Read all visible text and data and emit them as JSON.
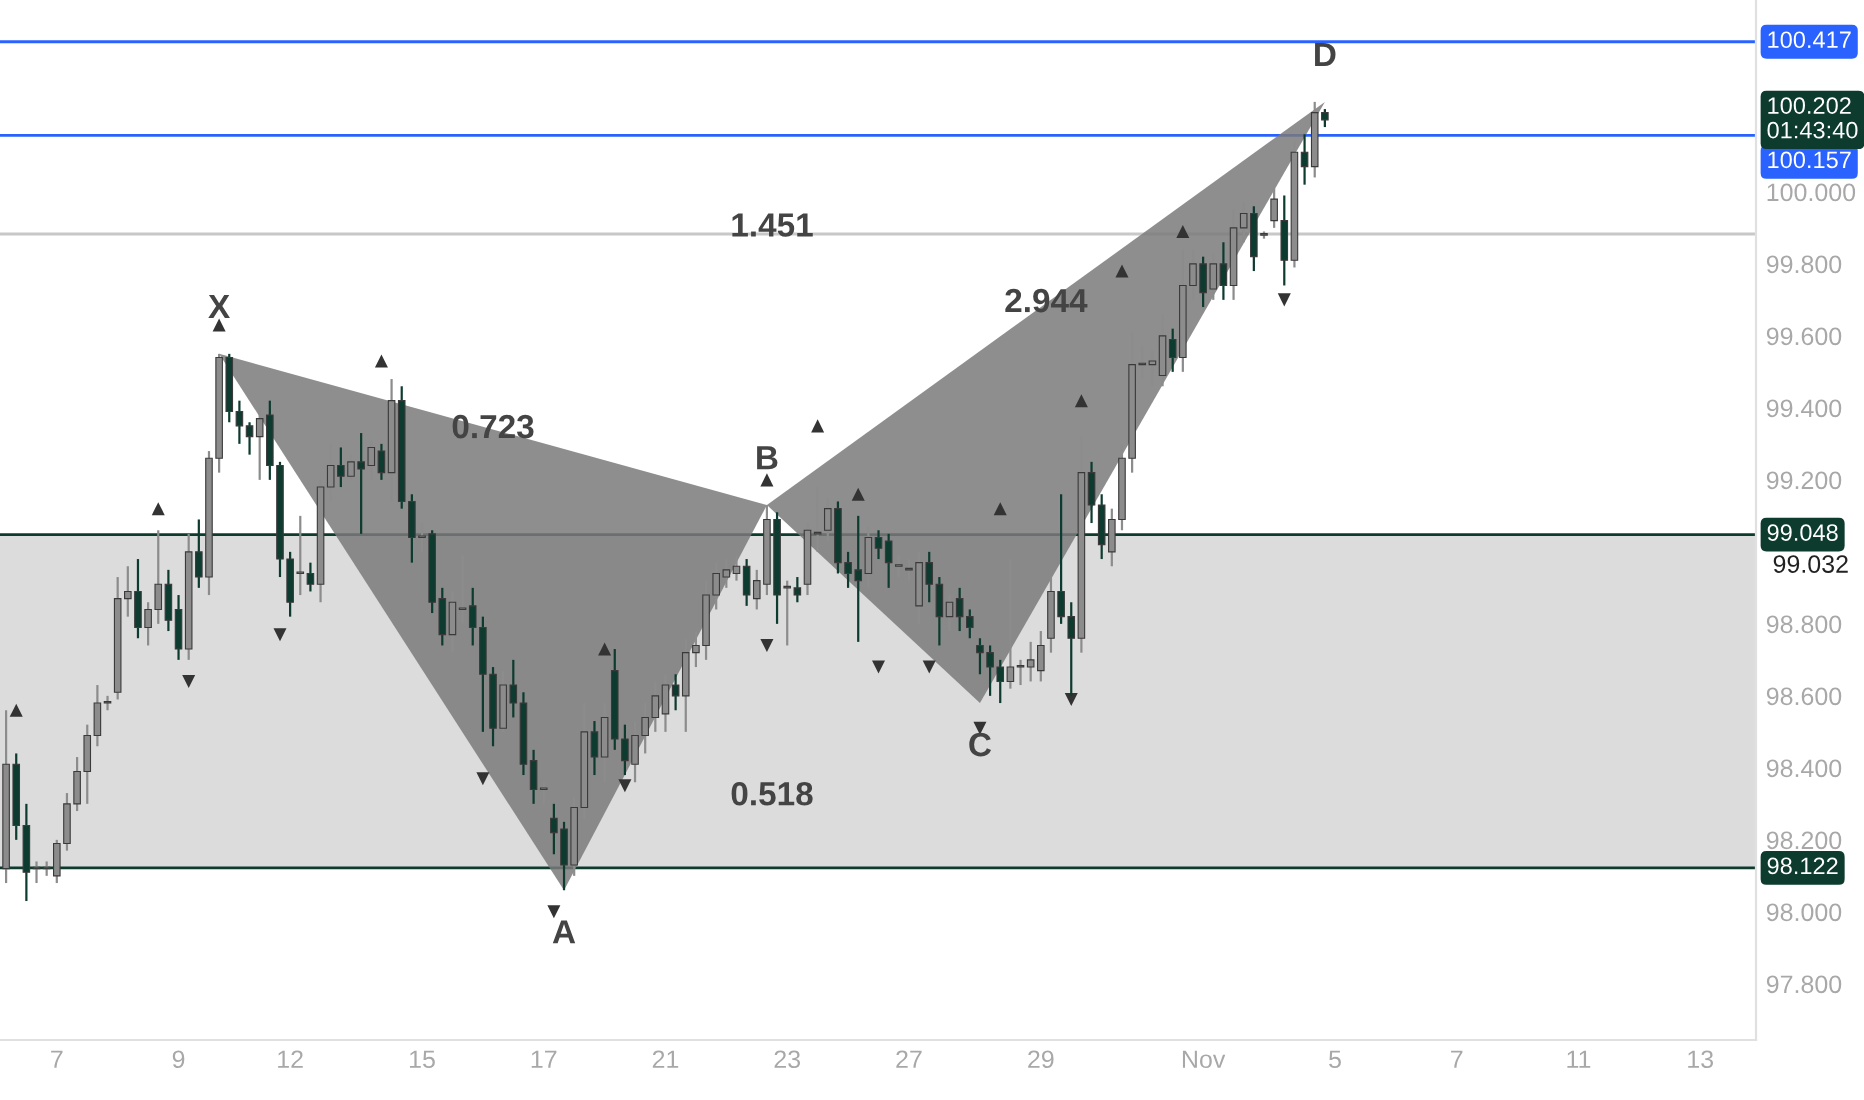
{
  "chart_data": {
    "type": "candlestick",
    "categories": [
      null,
      null,
      null,
      null,
      null,
      "7",
      null,
      null,
      null,
      null,
      null,
      null,
      null,
      null,
      null,
      null,
      null,
      "9",
      null,
      null,
      null,
      null,
      null,
      null,
      null,
      null,
      null,
      null,
      "12",
      null,
      null,
      null,
      null,
      null,
      null,
      null,
      null,
      null,
      null,
      null,
      null,
      "15",
      null,
      null,
      null,
      null,
      null,
      null,
      null,
      null,
      null,
      null,
      null,
      "17",
      null,
      null,
      null,
      null,
      null,
      null,
      null,
      null,
      null,
      null,
      null,
      "21",
      null,
      null,
      null,
      null,
      null,
      null,
      null,
      null,
      null,
      null,
      null,
      "23",
      null,
      null,
      null,
      null,
      null,
      null,
      null,
      null,
      null,
      null,
      null,
      "27",
      null,
      null,
      null,
      null,
      null,
      null,
      null,
      null,
      null,
      null,
      null,
      null,
      "29",
      null,
      null,
      null,
      null,
      null,
      null,
      null,
      null,
      null,
      null,
      null,
      null,
      null,
      null,
      null,
      "Nov",
      null,
      null,
      null,
      null,
      null,
      null,
      null,
      null,
      null,
      null,
      null,
      null,
      "5",
      null,
      null,
      null,
      null,
      null,
      null,
      null,
      null,
      null,
      null,
      null,
      "7",
      null,
      null,
      null,
      null,
      null,
      null,
      null,
      null,
      null,
      null,
      null,
      "11",
      null,
      null,
      null,
      null,
      null,
      null,
      null,
      null,
      null,
      null,
      null,
      "13",
      null,
      null,
      null,
      null,
      null
    ],
    "ohlc": [
      [
        98.12,
        98.56,
        98.08,
        98.41
      ],
      [
        98.41,
        98.44,
        98.2,
        98.24
      ],
      [
        98.24,
        98.3,
        98.03,
        98.11
      ],
      [
        98.12,
        98.14,
        98.08,
        98.12
      ],
      [
        98.12,
        98.14,
        98.1,
        98.12
      ],
      [
        98.1,
        98.2,
        98.08,
        98.19
      ],
      [
        98.19,
        98.33,
        98.17,
        98.3
      ],
      [
        98.3,
        98.43,
        98.28,
        98.39
      ],
      [
        98.39,
        98.52,
        98.3,
        98.49
      ],
      [
        98.49,
        98.63,
        98.46,
        98.58
      ],
      [
        98.58,
        98.6,
        98.56,
        98.58
      ],
      [
        98.61,
        98.93,
        98.59,
        98.87
      ],
      [
        98.87,
        98.96,
        98.82,
        98.89
      ],
      [
        98.89,
        98.98,
        98.76,
        98.79
      ],
      [
        98.79,
        98.86,
        98.74,
        98.84
      ],
      [
        98.84,
        99.06,
        98.8,
        98.91
      ],
      [
        98.91,
        98.95,
        98.78,
        98.81
      ],
      [
        98.84,
        98.88,
        98.7,
        98.73
      ],
      [
        98.73,
        99.05,
        98.7,
        99.0
      ],
      [
        99.0,
        99.09,
        98.9,
        98.93
      ],
      [
        98.93,
        99.28,
        98.88,
        99.26
      ],
      [
        99.26,
        99.55,
        99.22,
        99.54
      ],
      [
        99.54,
        99.55,
        99.36,
        99.39
      ],
      [
        99.39,
        99.42,
        99.3,
        99.35
      ],
      [
        99.35,
        99.36,
        99.27,
        99.32
      ],
      [
        99.32,
        99.4,
        99.2,
        99.37
      ],
      [
        99.38,
        99.42,
        99.2,
        99.24
      ],
      [
        99.24,
        99.25,
        98.93,
        98.98
      ],
      [
        98.98,
        99.0,
        98.82,
        98.86
      ],
      [
        98.94,
        99.1,
        98.88,
        98.94
      ],
      [
        98.94,
        98.97,
        98.89,
        98.91
      ],
      [
        98.91,
        99.2,
        98.86,
        99.18
      ],
      [
        99.18,
        99.3,
        99.14,
        99.24
      ],
      [
        99.24,
        99.29,
        99.18,
        99.21
      ],
      [
        99.21,
        99.27,
        99.2,
        99.25
      ],
      [
        99.25,
        99.33,
        99.05,
        99.23
      ],
      [
        99.24,
        99.31,
        99.2,
        99.29
      ],
      [
        99.28,
        99.3,
        99.2,
        99.22
      ],
      [
        99.22,
        99.48,
        99.14,
        99.42
      ],
      [
        99.42,
        99.46,
        99.12,
        99.14
      ],
      [
        99.14,
        99.16,
        98.97,
        99.04
      ],
      [
        99.04,
        99.08,
        99.0,
        99.04
      ],
      [
        99.05,
        99.06,
        98.83,
        98.86
      ],
      [
        98.87,
        98.9,
        98.74,
        98.77
      ],
      [
        98.77,
        98.89,
        98.72,
        98.86
      ],
      [
        98.84,
        98.99,
        98.8,
        98.84
      ],
      [
        98.85,
        98.9,
        98.74,
        98.79
      ],
      [
        98.79,
        98.82,
        98.5,
        98.66
      ],
      [
        98.66,
        98.68,
        98.46,
        98.51
      ],
      [
        98.51,
        98.67,
        98.5,
        98.63
      ],
      [
        98.63,
        98.7,
        98.54,
        98.58
      ],
      [
        98.58,
        98.61,
        98.38,
        98.41
      ],
      [
        98.42,
        98.45,
        98.3,
        98.34
      ],
      [
        98.34,
        98.36,
        98.3,
        98.34
      ],
      [
        98.26,
        98.3,
        98.16,
        98.22
      ],
      [
        98.23,
        98.25,
        98.06,
        98.13
      ],
      [
        98.13,
        98.32,
        98.1,
        98.29
      ],
      [
        98.29,
        98.58,
        98.26,
        98.5
      ],
      [
        98.5,
        98.53,
        98.38,
        98.43
      ],
      [
        98.43,
        98.58,
        98.36,
        98.54
      ],
      [
        98.67,
        98.73,
        98.45,
        98.48
      ],
      [
        98.48,
        98.52,
        98.38,
        98.42
      ],
      [
        98.41,
        98.53,
        98.36,
        98.49
      ],
      [
        98.49,
        98.58,
        98.44,
        98.54
      ],
      [
        98.54,
        98.64,
        98.5,
        98.6
      ],
      [
        98.55,
        98.66,
        98.5,
        98.63
      ],
      [
        98.63,
        98.66,
        98.56,
        98.6
      ],
      [
        98.6,
        98.76,
        98.5,
        98.72
      ],
      [
        98.72,
        98.78,
        98.68,
        98.74
      ],
      [
        98.74,
        98.92,
        98.7,
        98.88
      ],
      [
        98.88,
        98.97,
        98.84,
        98.94
      ],
      [
        98.93,
        98.98,
        98.9,
        98.95
      ],
      [
        98.94,
        98.99,
        98.92,
        98.96
      ],
      [
        98.96,
        98.98,
        98.85,
        98.88
      ],
      [
        98.87,
        98.95,
        98.84,
        98.92
      ],
      [
        98.91,
        99.13,
        98.88,
        99.09
      ],
      [
        99.09,
        99.11,
        98.8,
        98.88
      ],
      [
        98.9,
        98.92,
        98.74,
        98.9
      ],
      [
        98.9,
        98.93,
        98.86,
        98.88
      ],
      [
        98.91,
        99.08,
        98.88,
        99.06
      ],
      [
        99.05,
        99.18,
        99.0,
        99.05
      ],
      [
        99.06,
        99.15,
        99.03,
        99.12
      ],
      [
        99.12,
        99.14,
        98.94,
        98.97
      ],
      [
        98.97,
        99.0,
        98.9,
        98.94
      ],
      [
        98.95,
        99.1,
        98.75,
        98.92
      ],
      [
        98.94,
        99.07,
        98.9,
        99.04
      ],
      [
        99.04,
        99.06,
        98.98,
        99.01
      ],
      [
        99.03,
        99.05,
        98.9,
        98.97
      ],
      [
        98.96,
        98.99,
        98.93,
        98.96
      ],
      [
        98.95,
        98.98,
        98.92,
        98.95
      ],
      [
        98.85,
        99.0,
        98.8,
        98.97
      ],
      [
        98.97,
        99.0,
        98.86,
        98.91
      ],
      [
        98.91,
        98.93,
        98.74,
        98.82
      ],
      [
        98.82,
        98.88,
        98.78,
        98.86
      ],
      [
        98.87,
        98.9,
        98.78,
        98.82
      ],
      [
        98.82,
        98.84,
        98.76,
        98.79
      ],
      [
        98.74,
        98.76,
        98.66,
        98.72
      ],
      [
        98.72,
        98.74,
        98.6,
        98.68
      ],
      [
        98.68,
        98.7,
        98.58,
        98.64
      ],
      [
        98.64,
        98.98,
        98.62,
        98.68
      ],
      [
        98.68,
        98.7,
        98.63,
        98.68
      ],
      [
        98.68,
        98.75,
        98.64,
        98.7
      ],
      [
        98.67,
        98.78,
        98.64,
        98.74
      ],
      [
        98.76,
        98.93,
        98.72,
        98.89
      ],
      [
        98.89,
        99.16,
        98.8,
        98.82
      ],
      [
        98.82,
        98.86,
        98.6,
        98.76
      ],
      [
        98.76,
        99.32,
        98.72,
        99.22
      ],
      [
        99.22,
        99.25,
        99.08,
        99.13
      ],
      [
        99.13,
        99.16,
        98.98,
        99.02
      ],
      [
        99.0,
        99.12,
        98.96,
        99.09
      ],
      [
        99.09,
        99.3,
        99.06,
        99.26
      ],
      [
        99.26,
        99.61,
        99.22,
        99.52
      ],
      [
        99.52,
        99.57,
        99.48,
        99.52
      ],
      [
        99.52,
        99.56,
        99.46,
        99.53
      ],
      [
        99.49,
        99.66,
        99.46,
        99.6
      ],
      [
        99.59,
        99.62,
        99.5,
        99.54
      ],
      [
        99.54,
        99.84,
        99.5,
        99.74
      ],
      [
        99.74,
        99.84,
        99.7,
        99.8
      ],
      [
        99.8,
        99.82,
        99.68,
        99.72
      ],
      [
        99.73,
        99.83,
        99.7,
        99.8
      ],
      [
        99.8,
        99.86,
        99.7,
        99.74
      ],
      [
        99.74,
        99.95,
        99.7,
        99.9
      ],
      [
        99.9,
        99.97,
        99.86,
        99.94
      ],
      [
        99.94,
        99.96,
        99.78,
        99.82
      ],
      [
        99.88,
        99.89,
        99.87,
        99.88
      ],
      [
        99.92,
        100.01,
        99.9,
        99.98
      ],
      [
        99.92,
        99.99,
        99.74,
        99.81
      ],
      [
        99.81,
        100.14,
        99.79,
        100.11
      ],
      [
        100.11,
        100.16,
        100.02,
        100.07
      ],
      [
        100.07,
        100.25,
        100.04,
        100.22
      ],
      [
        100.22,
        100.23,
        100.18,
        100.2
      ],
      null,
      null,
      null,
      null,
      null,
      null,
      null,
      null,
      null,
      null,
      null,
      null,
      null,
      null,
      null,
      null,
      null,
      null,
      null,
      null,
      null,
      null,
      null,
      null,
      null,
      null,
      null,
      null,
      null,
      null,
      null,
      null,
      null,
      null,
      null,
      null,
      null,
      null,
      null,
      null,
      null,
      null
    ],
    "colors": [
      "#8c8c8c",
      "#0e3b2f",
      "#0e3b2f",
      "#8c8c8c",
      "#8c8c8c",
      "#8c8c8c",
      "#8c8c8c",
      "#8c8c8c",
      "#8c8c8c",
      "#8c8c8c",
      "#8c8c8c",
      "#8c8c8c",
      "#8c8c8c",
      "#0e3b2f",
      "#8c8c8c",
      "#8c8c8c",
      "#0e3b2f",
      "#0e3b2f",
      "#8c8c8c",
      "#0e3b2f",
      "#8c8c8c",
      "#8c8c8c",
      "#0e3b2f",
      "#0e3b2f",
      "#0e3b2f",
      "#8c8c8c",
      "#0e3b2f",
      "#0e3b2f",
      "#0e3b2f",
      "#8c8c8c",
      "#0e3b2f",
      "#8c8c8c",
      "#8c8c8c",
      "#0e3b2f",
      "#8c8c8c",
      "#0e3b2f",
      "#8c8c8c",
      "#0e3b2f",
      "#8c8c8c",
      "#0e3b2f",
      "#0e3b2f",
      "#8c8c8c",
      "#0e3b2f",
      "#0e3b2f",
      "#8c8c8c",
      "#8c8c8c",
      "#0e3b2f",
      "#0e3b2f",
      "#0e3b2f",
      "#8c8c8c",
      "#0e3b2f",
      "#0e3b2f",
      "#0e3b2f",
      "#8c8c8c",
      "#0e3b2f",
      "#0e3b2f",
      "#8c8c8c",
      "#8c8c8c",
      "#0e3b2f",
      "#8c8c8c",
      "#0e3b2f",
      "#0e3b2f",
      "#8c8c8c",
      "#8c8c8c",
      "#8c8c8c",
      "#8c8c8c",
      "#0e3b2f",
      "#8c8c8c",
      "#8c8c8c",
      "#8c8c8c",
      "#8c8c8c",
      "#8c8c8c",
      "#8c8c8c",
      "#0e3b2f",
      "#8c8c8c",
      "#8c8c8c",
      "#0e3b2f",
      "#8c8c8c",
      "#0e3b2f",
      "#8c8c8c",
      "#8c8c8c",
      "#8c8c8c",
      "#0e3b2f",
      "#0e3b2f",
      "#0e3b2f",
      "#8c8c8c",
      "#0e3b2f",
      "#0e3b2f",
      "#8c8c8c",
      "#8c8c8c",
      "#8c8c8c",
      "#0e3b2f",
      "#0e3b2f",
      "#8c8c8c",
      "#0e3b2f",
      "#0e3b2f",
      "#0e3b2f",
      "#0e3b2f",
      "#0e3b2f",
      "#8c8c8c",
      "#8c8c8c",
      "#8c8c8c",
      "#8c8c8c",
      "#8c8c8c",
      "#0e3b2f",
      "#0e3b2f",
      "#8c8c8c",
      "#0e3b2f",
      "#0e3b2f",
      "#8c8c8c",
      "#8c8c8c",
      "#8c8c8c",
      "#8c8c8c",
      "#8c8c8c",
      "#8c8c8c",
      "#0e3b2f",
      "#8c8c8c",
      "#8c8c8c",
      "#0e3b2f",
      "#8c8c8c",
      "#0e3b2f",
      "#8c8c8c",
      "#8c8c8c",
      "#0e3b2f",
      "#8c8c8c",
      "#8c8c8c",
      "#0e3b2f",
      "#8c8c8c",
      "#0e3b2f",
      "#8c8c8c",
      "#0e3b2f",
      null,
      null,
      null,
      null,
      null,
      null,
      null,
      null,
      null,
      null,
      null,
      null,
      null,
      null,
      null,
      null,
      null,
      null,
      null,
      null,
      null,
      null,
      null,
      null,
      null,
      null,
      null,
      null,
      null,
      null,
      null,
      null,
      null,
      null,
      null,
      null,
      null,
      null,
      null,
      null,
      null,
      null
    ],
    "series": [
      {
        "type": "area",
        "color": "#7a7a7a",
        "values": [
          null,
          null,
          null,
          null,
          null,
          null,
          null,
          null,
          null,
          null,
          null,
          null,
          null,
          null,
          null,
          null,
          null,
          null,
          null,
          null,
          null,
          99.55,
          null,
          null,
          null,
          null,
          null,
          null,
          null,
          null,
          null,
          null,
          null,
          null,
          null,
          null,
          null,
          null,
          null,
          null,
          null,
          null,
          null,
          null,
          null,
          null,
          null,
          null,
          null,
          null,
          null,
          null,
          null,
          null,
          null,
          98.06,
          null,
          null,
          null,
          null,
          null,
          null,
          null,
          null,
          null,
          null,
          null,
          null,
          null,
          null,
          null,
          null,
          null,
          null,
          null,
          99.13,
          null,
          null,
          null,
          null,
          null,
          null,
          null,
          null,
          null,
          null,
          null,
          null,
          null,
          null,
          null,
          null,
          null,
          null,
          null,
          null,
          98.58,
          null,
          null,
          null,
          null,
          null,
          null,
          null,
          null,
          null,
          null,
          null,
          null,
          null,
          null,
          null,
          null,
          null,
          null,
          null,
          null,
          null,
          null,
          null,
          null,
          null,
          null,
          null,
          null,
          null,
          null,
          null,
          null,
          null,
          100.25,
          null,
          null,
          null,
          null,
          null,
          null,
          null,
          null,
          null,
          null,
          null,
          null,
          null,
          null,
          null,
          null,
          null,
          null,
          null,
          null,
          null,
          null,
          null,
          null,
          null,
          null,
          null,
          null,
          null,
          null,
          null,
          null,
          null,
          null,
          null,
          null,
          null,
          null,
          null,
          null,
          null,
          null
        ]
      },
      {
        "type": "scatter",
        "marker": "triangle",
        "color": "#333333",
        "values": [
          null,
          98.56,
          null,
          null,
          null,
          null,
          null,
          null,
          null,
          null,
          null,
          null,
          null,
          null,
          null,
          99.12,
          null,
          null,
          null,
          null,
          null,
          99.63,
          null,
          null,
          null,
          null,
          null,
          null,
          null,
          null,
          null,
          null,
          null,
          null,
          null,
          null,
          null,
          99.53,
          null,
          null,
          null,
          null,
          null,
          null,
          null,
          null,
          null,
          null,
          null,
          null,
          null,
          null,
          null,
          null,
          null,
          null,
          null,
          null,
          null,
          98.73,
          null,
          null,
          null,
          null,
          null,
          null,
          null,
          null,
          null,
          null,
          null,
          null,
          null,
          null,
          null,
          99.2,
          null,
          null,
          null,
          null,
          99.35,
          null,
          null,
          null,
          99.16,
          null,
          null,
          null,
          null,
          null,
          null,
          null,
          null,
          null,
          null,
          null,
          null,
          null,
          99.12,
          null,
          null,
          null,
          null,
          null,
          null,
          null,
          99.42,
          null,
          null,
          null,
          99.78,
          null,
          null,
          null,
          null,
          null,
          99.89,
          null,
          null,
          null,
          null,
          null,
          null,
          null,
          null,
          null,
          null,
          null,
          null,
          null,
          null,
          null,
          null,
          null,
          null,
          null,
          null,
          null,
          null,
          null,
          null,
          null,
          null,
          null,
          null,
          null,
          null,
          null,
          null,
          null,
          null,
          null,
          null,
          null,
          null,
          null,
          null,
          null,
          null,
          null,
          null,
          null,
          null,
          null,
          null,
          null,
          null,
          null,
          null,
          null,
          null,
          null,
          null
        ]
      },
      {
        "type": "scatter",
        "marker": "triangle_down",
        "color": "#333333",
        "values": [
          null,
          null,
          null,
          null,
          null,
          null,
          null,
          null,
          null,
          null,
          null,
          null,
          null,
          null,
          null,
          null,
          null,
          null,
          98.64,
          null,
          null,
          null,
          null,
          null,
          null,
          null,
          null,
          98.77,
          null,
          null,
          null,
          null,
          null,
          null,
          null,
          null,
          null,
          null,
          null,
          null,
          null,
          null,
          null,
          null,
          null,
          null,
          null,
          98.37,
          null,
          null,
          null,
          null,
          null,
          null,
          98.0,
          null,
          null,
          null,
          null,
          null,
          null,
          98.35,
          null,
          null,
          null,
          null,
          null,
          null,
          null,
          null,
          null,
          null,
          null,
          null,
          null,
          98.74,
          null,
          null,
          null,
          null,
          null,
          null,
          null,
          null,
          null,
          null,
          98.68,
          null,
          null,
          null,
          null,
          98.68,
          null,
          null,
          null,
          null,
          98.51,
          null,
          null,
          null,
          null,
          null,
          null,
          null,
          null,
          98.59,
          null,
          null,
          null,
          null,
          null,
          null,
          null,
          null,
          null,
          null,
          null,
          null,
          null,
          null,
          null,
          null,
          null,
          null,
          null,
          null,
          99.7,
          null,
          null,
          null,
          null,
          null,
          null,
          null,
          null,
          null,
          null,
          null,
          null,
          null,
          null,
          null,
          null,
          null,
          null,
          null,
          null,
          null,
          null,
          null,
          null,
          null,
          null,
          null,
          null,
          null,
          null,
          null,
          null,
          null,
          null,
          null,
          null,
          null,
          null,
          null,
          null,
          null,
          null,
          null,
          null,
          null,
          null
        ]
      }
    ],
    "ylim": [
      97.644,
      100.533
    ],
    "yticks": [
      {
        "value": 97.8,
        "label": "97.800"
      },
      {
        "value": 98.0,
        "label": "98.000"
      },
      {
        "value": 98.2,
        "label": "98.200"
      },
      {
        "value": 98.4,
        "label": "98.400"
      },
      {
        "value": 98.6,
        "label": "98.600"
      },
      {
        "value": 98.8,
        "label": "98.800"
      },
      {
        "value": 99.2,
        "label": "99.200"
      },
      {
        "value": 99.4,
        "label": "99.400"
      },
      {
        "value": 99.6,
        "label": "99.600"
      },
      {
        "value": 99.8,
        "label": "99.800"
      },
      {
        "value": 100.0,
        "label": "100.000"
      }
    ],
    "grid": false,
    "bands": [
      {
        "axis": "y",
        "from": 98.122,
        "to": 99.048,
        "color": "#dcdcdc"
      }
    ],
    "ref_lines": [
      {
        "axis": "y",
        "value": 100.417,
        "label": "100.417",
        "color": "#2962ff"
      },
      {
        "axis": "y",
        "value": 100.157,
        "label": "100.157",
        "color": "#2962ff"
      },
      {
        "axis": "y",
        "value": 99.883,
        "color": "#c8c8c8"
      },
      {
        "axis": "y",
        "value": 99.048,
        "label": "99.048",
        "color": "#0d3b2e"
      },
      {
        "axis": "y",
        "value": 98.122,
        "label": "98.122",
        "color": "#0d3b2e"
      }
    ],
    "annotations": [
      "100.202\n01:43:40",
      "X",
      "A",
      "B",
      "C",
      "D",
      "0.723",
      "1.451",
      "2.944",
      "0.518",
      "99.032"
    ]
  }
}
